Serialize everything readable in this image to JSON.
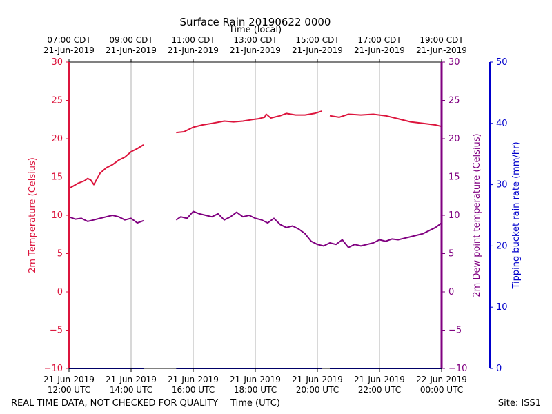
{
  "chart_data": {
    "type": "line",
    "title": "Surface Rain 20190622 0000",
    "xlabel_bottom": "Time (UTC)",
    "xlabel_top": "Time (local)",
    "ylabel_left": "2m Temperature (Celsius)",
    "ylabel_right": "2m Dew point temperature (Celsius)",
    "ylabel_far_right": "Tipping bucket rain rate (mm/hr)",
    "footer_left": "REAL TIME DATA, NOT CHECKED FOR QUALITY",
    "footer_right": "Site: ISS1",
    "x_range_hours": [
      0,
      12
    ],
    "ylim_temp": [
      -10,
      30
    ],
    "yticks_temp": [
      "30",
      "25",
      "20",
      "15",
      "10",
      "5",
      "0",
      "−5",
      "−10"
    ],
    "ylim_rain": [
      0,
      50
    ],
    "yticks_rain": [
      "50",
      "40",
      "30",
      "20",
      "10",
      "0"
    ],
    "grid": true,
    "bottom_ticks": [
      {
        "line1": "21-Jun-2019",
        "line2": "12:00 UTC"
      },
      {
        "line1": "21-Jun-2019",
        "line2": "14:00 UTC"
      },
      {
        "line1": "21-Jun-2019",
        "line2": "16:00 UTC"
      },
      {
        "line1": "21-Jun-2019",
        "line2": "18:00 UTC"
      },
      {
        "line1": "21-Jun-2019",
        "line2": "20:00 UTC"
      },
      {
        "line1": "21-Jun-2019",
        "line2": "22:00 UTC"
      },
      {
        "line1": "22-Jun-2019",
        "line2": "00:00 UTC"
      }
    ],
    "top_ticks": [
      {
        "line1": "07:00 CDT",
        "line2": "21-Jun-2019"
      },
      {
        "line1": "09:00 CDT",
        "line2": "21-Jun-2019"
      },
      {
        "line1": "11:00 CDT",
        "line2": "21-Jun-2019"
      },
      {
        "line1": "13:00 CDT",
        "line2": "21-Jun-2019"
      },
      {
        "line1": "15:00 CDT",
        "line2": "21-Jun-2019"
      },
      {
        "line1": "17:00 CDT",
        "line2": "21-Jun-2019"
      },
      {
        "line1": "19:00 CDT",
        "line2": "21-Jun-2019"
      }
    ],
    "series": [
      {
        "name": "2m Temperature",
        "color": "#dc143c",
        "segments": [
          [
            [
              0,
              13.5
            ],
            [
              0.3,
              14.2
            ],
            [
              0.5,
              14.5
            ],
            [
              0.6,
              14.8
            ],
            [
              0.7,
              14.6
            ],
            [
              0.8,
              14.0
            ],
            [
              1.0,
              15.5
            ],
            [
              1.2,
              16.2
            ],
            [
              1.4,
              16.6
            ],
            [
              1.6,
              17.2
            ],
            [
              1.8,
              17.6
            ],
            [
              2.0,
              18.3
            ],
            [
              2.2,
              18.7
            ],
            [
              2.4,
              19.2
            ]
          ],
          [
            [
              3.45,
              20.8
            ],
            [
              3.7,
              20.9
            ],
            [
              4.0,
              21.5
            ],
            [
              4.3,
              21.8
            ],
            [
              4.6,
              22.0
            ],
            [
              5.0,
              22.3
            ],
            [
              5.3,
              22.2
            ],
            [
              5.6,
              22.3
            ],
            [
              5.9,
              22.5
            ],
            [
              6.1,
              22.6
            ],
            [
              6.3,
              22.8
            ],
            [
              6.35,
              23.2
            ],
            [
              6.5,
              22.7
            ],
            [
              6.8,
              23.0
            ],
            [
              7.0,
              23.3
            ],
            [
              7.3,
              23.1
            ],
            [
              7.6,
              23.1
            ],
            [
              7.9,
              23.3
            ],
            [
              8.15,
              23.6
            ]
          ],
          [
            [
              8.4,
              23.0
            ],
            [
              8.7,
              22.8
            ],
            [
              9.0,
              23.2
            ],
            [
              9.4,
              23.1
            ],
            [
              9.8,
              23.2
            ],
            [
              10.2,
              23.0
            ],
            [
              10.6,
              22.6
            ],
            [
              11.0,
              22.2
            ],
            [
              11.4,
              22.0
            ],
            [
              11.8,
              21.8
            ],
            [
              12.0,
              21.6
            ]
          ]
        ]
      },
      {
        "name": "2m Dew point temperature",
        "color": "#800080",
        "segments": [
          [
            [
              0,
              9.8
            ],
            [
              0.2,
              9.5
            ],
            [
              0.4,
              9.6
            ],
            [
              0.6,
              9.2
            ],
            [
              0.8,
              9.4
            ],
            [
              1.0,
              9.6
            ],
            [
              1.2,
              9.8
            ],
            [
              1.4,
              10.0
            ],
            [
              1.6,
              9.8
            ],
            [
              1.8,
              9.4
            ],
            [
              2.0,
              9.6
            ],
            [
              2.2,
              9.0
            ],
            [
              2.4,
              9.3
            ]
          ],
          [
            [
              3.45,
              9.4
            ],
            [
              3.6,
              9.8
            ],
            [
              3.8,
              9.6
            ],
            [
              4.0,
              10.5
            ],
            [
              4.2,
              10.2
            ],
            [
              4.4,
              10.0
            ],
            [
              4.6,
              9.8
            ],
            [
              4.8,
              10.2
            ],
            [
              5.0,
              9.4
            ],
            [
              5.2,
              9.8
            ],
            [
              5.4,
              10.4
            ],
            [
              5.6,
              9.8
            ],
            [
              5.8,
              10.0
            ],
            [
              6.0,
              9.6
            ],
            [
              6.2,
              9.4
            ],
            [
              6.4,
              9.0
            ],
            [
              6.6,
              9.6
            ],
            [
              6.8,
              8.8
            ],
            [
              7.0,
              8.4
            ],
            [
              7.2,
              8.6
            ],
            [
              7.4,
              8.2
            ],
            [
              7.6,
              7.6
            ],
            [
              7.8,
              6.6
            ],
            [
              8.0,
              6.2
            ],
            [
              8.2,
              6.0
            ],
            [
              8.4,
              6.4
            ],
            [
              8.6,
              6.2
            ],
            [
              8.8,
              6.8
            ],
            [
              9.0,
              5.8
            ],
            [
              9.2,
              6.2
            ],
            [
              9.4,
              6.0
            ],
            [
              9.6,
              6.2
            ],
            [
              9.8,
              6.4
            ],
            [
              10.0,
              6.8
            ],
            [
              10.2,
              6.6
            ],
            [
              10.4,
              6.9
            ],
            [
              10.6,
              6.8
            ],
            [
              10.8,
              7.0
            ],
            [
              11.0,
              7.2
            ],
            [
              11.2,
              7.4
            ],
            [
              11.4,
              7.6
            ],
            [
              11.6,
              8.0
            ],
            [
              11.8,
              8.4
            ],
            [
              12.0,
              9.0
            ]
          ]
        ]
      },
      {
        "name": "Tipping bucket rain rate",
        "color": "#0000cc",
        "axis": "rain",
        "segments": [
          [
            [
              0,
              0
            ],
            [
              2.4,
              0
            ]
          ],
          [
            [
              3.45,
              0
            ],
            [
              8.15,
              0
            ]
          ],
          [
            [
              8.4,
              0
            ],
            [
              12.0,
              0
            ]
          ]
        ]
      }
    ]
  }
}
